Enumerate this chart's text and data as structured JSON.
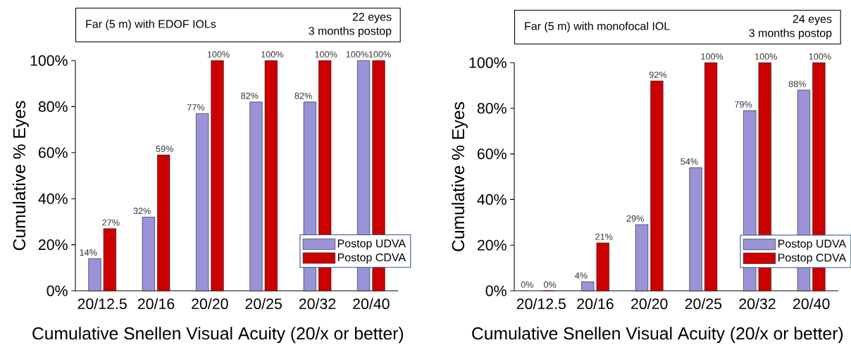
{
  "chart_data": [
    {
      "type": "bar",
      "title": "Far (5 m) with EDOF IOLs",
      "annotations": [
        "22 eyes",
        "3 months postop"
      ],
      "xlabel": "Cumulative Snellen Visual Acuity (20/x or better)",
      "ylabel": "Cumulative % Eyes",
      "categories": [
        "20/12.5",
        "20/16",
        "20/20",
        "20/25",
        "20/32",
        "20/40"
      ],
      "series": [
        {
          "name": "Postop UDVA",
          "color": "#9b93d8",
          "values": [
            14,
            32,
            77,
            82,
            82,
            100
          ],
          "value_labels": [
            "14%",
            "32%",
            "77%",
            "82%",
            "82%",
            "100%"
          ]
        },
        {
          "name": "Postop CDVA",
          "color": "#cc0000",
          "values": [
            27,
            59,
            100,
            100,
            100,
            100
          ],
          "value_labels": [
            "27%",
            "59%",
            "100%",
            "100%",
            "100%",
            "100%"
          ]
        }
      ],
      "ylim": [
        0,
        100
      ],
      "yticks": [
        {
          "value": 0,
          "label": "0%"
        },
        {
          "value": 20,
          "label": "20%"
        },
        {
          "value": 40,
          "label": "40%"
        },
        {
          "value": 60,
          "label": "60%"
        },
        {
          "value": 80,
          "label": "80%"
        },
        {
          "value": 100,
          "label": "100%"
        }
      ],
      "legend": "bottom right"
    },
    {
      "type": "bar",
      "title": "Far (5 m) with monofocal IOL",
      "annotations": [
        "24 eyes",
        "3 months postop"
      ],
      "xlabel": "Cumulative Snellen Visual Acuity (20/x or better)",
      "ylabel": "Cumulative % Eyes",
      "categories": [
        "20/12.5",
        "20/16",
        "20/20",
        "20/25",
        "20/32",
        "20/40"
      ],
      "series": [
        {
          "name": "Postop UDVA",
          "color": "#9b93d8",
          "values": [
            0,
            4,
            29,
            54,
            79,
            88
          ],
          "value_labels": [
            "0%",
            "4%",
            "29%",
            "54%",
            "79%",
            "88%"
          ]
        },
        {
          "name": "Postop CDVA",
          "color": "#cc0000",
          "values": [
            0,
            21,
            92,
            100,
            100,
            100
          ],
          "value_labels": [
            "0%",
            "21%",
            "92%",
            "100%",
            "100%",
            "100%"
          ]
        }
      ],
      "ylim": [
        0,
        100
      ],
      "yticks": [
        {
          "value": 0,
          "label": "0%"
        },
        {
          "value": 20,
          "label": "20%"
        },
        {
          "value": 40,
          "label": "40%"
        },
        {
          "value": 60,
          "label": "60%"
        },
        {
          "value": 80,
          "label": "80%"
        },
        {
          "value": 100,
          "label": "100%"
        }
      ],
      "legend": "bottom right"
    }
  ]
}
